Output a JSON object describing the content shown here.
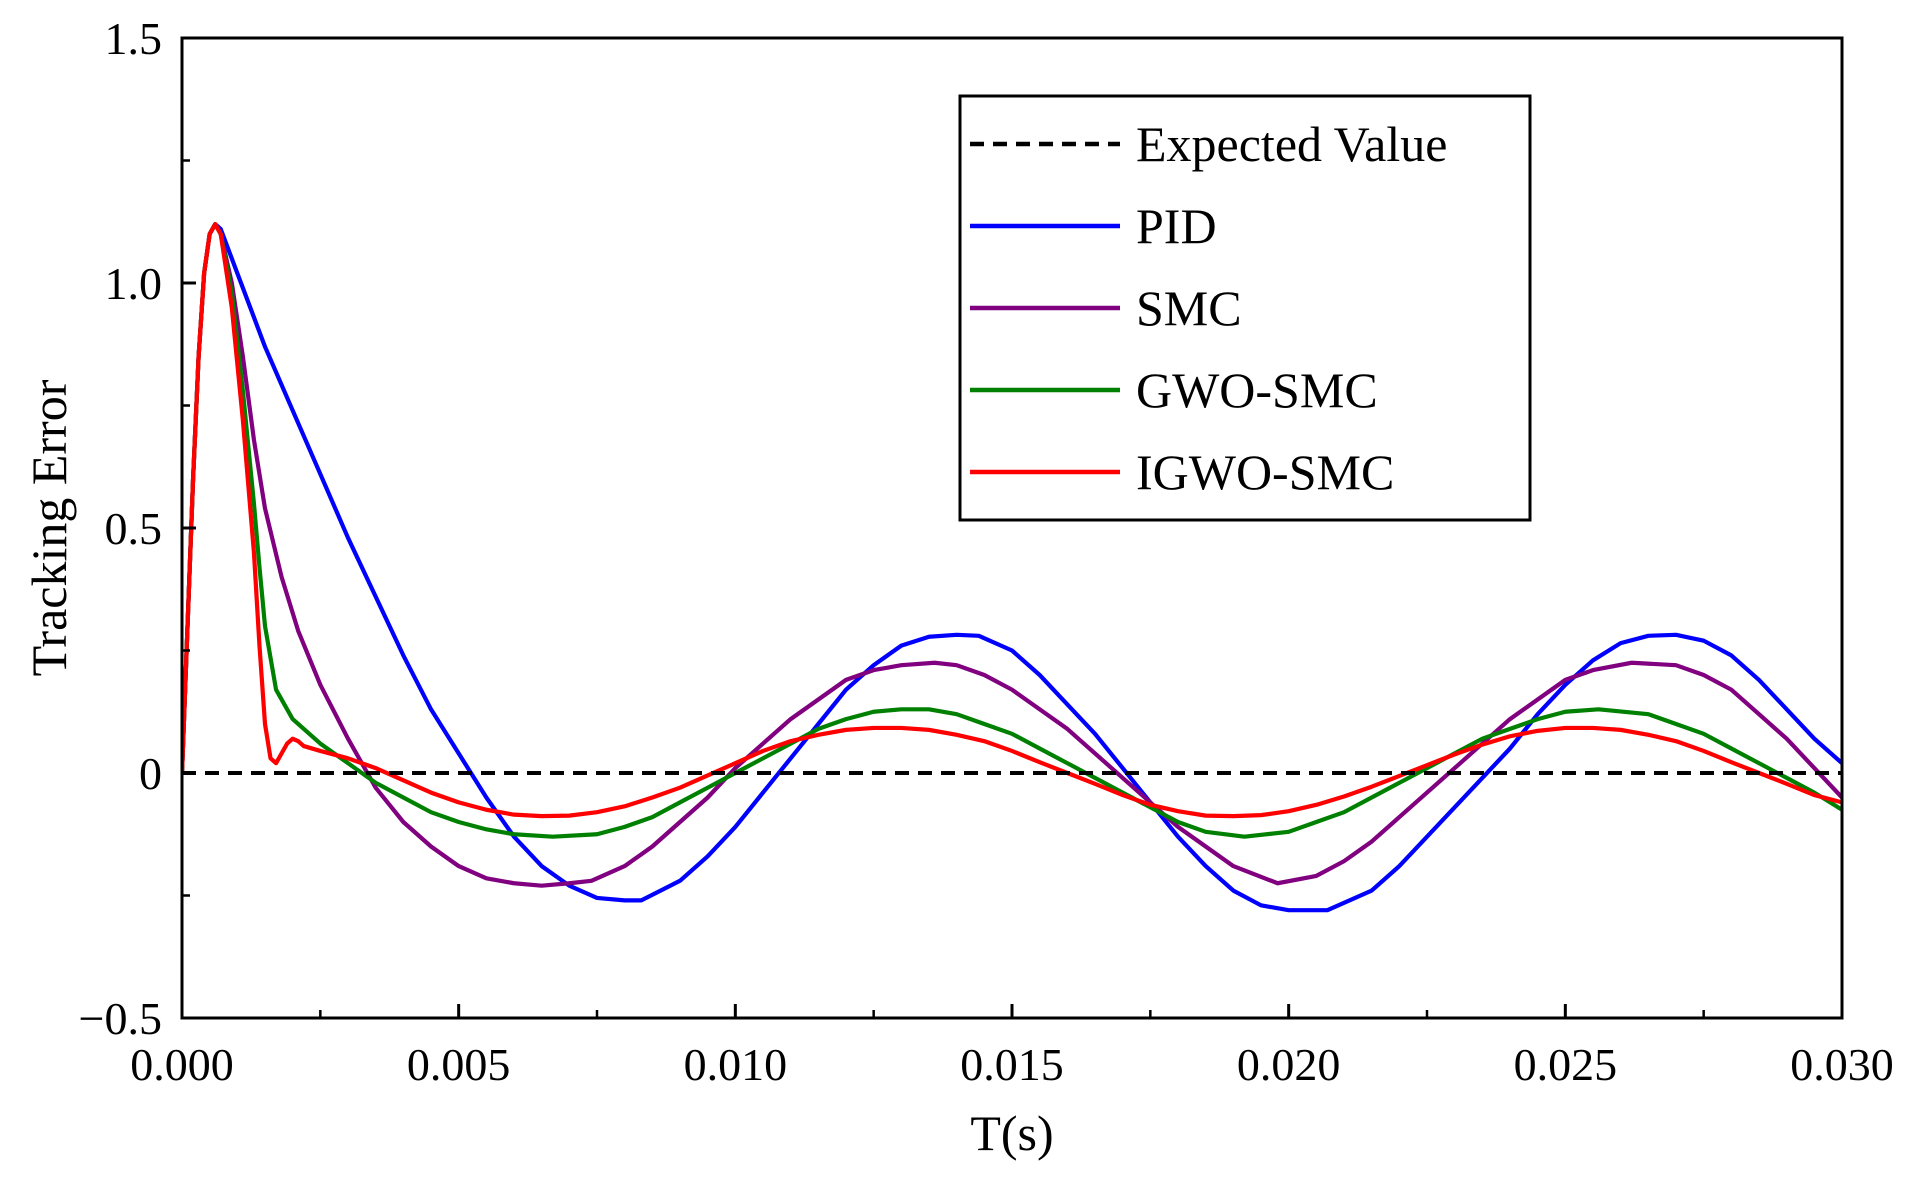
{
  "chart_data": {
    "type": "line",
    "title": "",
    "xlabel": "T(s)",
    "ylabel": "Tracking Error",
    "xlim": [
      0,
      0.03
    ],
    "ylim": [
      -0.5,
      1.5
    ],
    "x_ticks": [
      0,
      0.005,
      0.01,
      0.015,
      0.02,
      0.025,
      0.03
    ],
    "x_tick_labels": [
      "0.000",
      "0.005",
      "0.010",
      "0.015",
      "0.020",
      "0.025",
      "0.030"
    ],
    "x_minor_ticks": [
      0.0025,
      0.0075,
      0.0125,
      0.0175,
      0.0225,
      0.0275
    ],
    "y_ticks": [
      -0.5,
      0,
      0.5,
      1.0,
      1.5
    ],
    "y_tick_labels": [
      "−0.5",
      "0",
      "0.5",
      "1.0",
      "1.5"
    ],
    "y_minor_ticks": [
      -0.25,
      0.25,
      0.75,
      1.25
    ],
    "grid": false,
    "legend_position": "top-right",
    "series": [
      {
        "name": "Expected Value",
        "color": "#000000",
        "dashed": true,
        "x": [
          0,
          0.03
        ],
        "y": [
          0,
          0
        ]
      },
      {
        "name": "PID",
        "color": "#0000ff",
        "dashed": false,
        "x": [
          0,
          0.0001,
          0.0002,
          0.0003,
          0.0004,
          0.0005,
          0.0006,
          0.0007,
          0.001,
          0.0015,
          0.002,
          0.0025,
          0.003,
          0.0035,
          0.004,
          0.0045,
          0.005,
          0.0055,
          0.006,
          0.0065,
          0.007,
          0.0075,
          0.008,
          0.0083,
          0.009,
          0.0095,
          0.01,
          0.0105,
          0.011,
          0.0115,
          0.012,
          0.0125,
          0.013,
          0.0135,
          0.014,
          0.0144,
          0.015,
          0.0155,
          0.016,
          0.0165,
          0.017,
          0.0175,
          0.018,
          0.0185,
          0.019,
          0.0195,
          0.02,
          0.0207,
          0.0215,
          0.022,
          0.0225,
          0.023,
          0.0235,
          0.024,
          0.0245,
          0.025,
          0.0255,
          0.026,
          0.0265,
          0.027,
          0.0275,
          0.028,
          0.0285,
          0.029,
          0.0295,
          0.03
        ],
        "y": [
          0,
          0.3,
          0.6,
          0.85,
          1.02,
          1.1,
          1.12,
          1.11,
          1.02,
          0.87,
          0.74,
          0.61,
          0.48,
          0.36,
          0.24,
          0.13,
          0.04,
          -0.05,
          -0.13,
          -0.19,
          -0.23,
          -0.255,
          -0.26,
          -0.26,
          -0.22,
          -0.17,
          -0.11,
          -0.04,
          0.03,
          0.1,
          0.17,
          0.22,
          0.26,
          0.278,
          0.282,
          0.28,
          0.25,
          0.2,
          0.14,
          0.08,
          0.01,
          -0.06,
          -0.13,
          -0.19,
          -0.24,
          -0.27,
          -0.28,
          -0.28,
          -0.24,
          -0.19,
          -0.13,
          -0.07,
          -0.01,
          0.05,
          0.12,
          0.18,
          0.23,
          0.265,
          0.28,
          0.282,
          0.27,
          0.24,
          0.19,
          0.13,
          0.07,
          0.02
        ]
      },
      {
        "name": "SMC",
        "color": "#800080",
        "dashed": false,
        "x": [
          0,
          0.0001,
          0.0002,
          0.0003,
          0.0004,
          0.0005,
          0.0006,
          0.0007,
          0.0009,
          0.0011,
          0.0013,
          0.0015,
          0.0018,
          0.0021,
          0.0025,
          0.003,
          0.0035,
          0.004,
          0.0045,
          0.005,
          0.0055,
          0.006,
          0.0065,
          0.007,
          0.0074,
          0.008,
          0.0085,
          0.009,
          0.0095,
          0.01,
          0.0105,
          0.011,
          0.0115,
          0.012,
          0.0125,
          0.013,
          0.0136,
          0.014,
          0.0145,
          0.015,
          0.0155,
          0.016,
          0.0165,
          0.017,
          0.0175,
          0.018,
          0.0185,
          0.019,
          0.0198,
          0.0205,
          0.021,
          0.0215,
          0.022,
          0.0225,
          0.023,
          0.0235,
          0.024,
          0.0245,
          0.025,
          0.0255,
          0.0262,
          0.027,
          0.0275,
          0.028,
          0.0285,
          0.029,
          0.0295,
          0.03
        ],
        "y": [
          0,
          0.3,
          0.6,
          0.85,
          1.02,
          1.1,
          1.12,
          1.1,
          1.0,
          0.85,
          0.68,
          0.54,
          0.4,
          0.29,
          0.18,
          0.07,
          -0.03,
          -0.1,
          -0.15,
          -0.19,
          -0.215,
          -0.225,
          -0.23,
          -0.225,
          -0.22,
          -0.19,
          -0.15,
          -0.1,
          -0.05,
          0.01,
          0.06,
          0.11,
          0.15,
          0.19,
          0.21,
          0.22,
          0.225,
          0.22,
          0.2,
          0.17,
          0.13,
          0.09,
          0.04,
          -0.01,
          -0.06,
          -0.11,
          -0.15,
          -0.19,
          -0.225,
          -0.21,
          -0.18,
          -0.14,
          -0.09,
          -0.04,
          0.01,
          0.06,
          0.11,
          0.15,
          0.19,
          0.21,
          0.225,
          0.22,
          0.2,
          0.17,
          0.12,
          0.07,
          0.01,
          -0.05
        ]
      },
      {
        "name": "GWO-SMC",
        "color": "#008000",
        "dashed": false,
        "x": [
          0,
          0.0001,
          0.0002,
          0.0003,
          0.0004,
          0.0005,
          0.0006,
          0.0007,
          0.0009,
          0.0011,
          0.0013,
          0.0014,
          0.0015,
          0.0017,
          0.002,
          0.0025,
          0.003,
          0.0035,
          0.004,
          0.0045,
          0.005,
          0.0055,
          0.006,
          0.0067,
          0.0075,
          0.008,
          0.0085,
          0.009,
          0.0095,
          0.01,
          0.0105,
          0.011,
          0.0115,
          0.012,
          0.0125,
          0.013,
          0.0135,
          0.014,
          0.0145,
          0.015,
          0.0155,
          0.016,
          0.0165,
          0.017,
          0.0175,
          0.018,
          0.0185,
          0.0192,
          0.02,
          0.0205,
          0.021,
          0.0215,
          0.022,
          0.0225,
          0.023,
          0.0235,
          0.024,
          0.0245,
          0.025,
          0.0256,
          0.0265,
          0.027,
          0.0275,
          0.028,
          0.0285,
          0.029,
          0.0295,
          0.03
        ],
        "y": [
          0,
          0.3,
          0.6,
          0.85,
          1.02,
          1.1,
          1.12,
          1.1,
          0.98,
          0.78,
          0.55,
          0.42,
          0.3,
          0.17,
          0.11,
          0.06,
          0.02,
          -0.02,
          -0.05,
          -0.08,
          -0.1,
          -0.115,
          -0.125,
          -0.13,
          -0.125,
          -0.11,
          -0.09,
          -0.06,
          -0.03,
          0.0,
          0.03,
          0.06,
          0.09,
          0.11,
          0.125,
          0.13,
          0.13,
          0.12,
          0.1,
          0.08,
          0.05,
          0.02,
          -0.01,
          -0.04,
          -0.07,
          -0.1,
          -0.12,
          -0.13,
          -0.12,
          -0.1,
          -0.08,
          -0.05,
          -0.02,
          0.01,
          0.04,
          0.07,
          0.09,
          0.11,
          0.125,
          0.13,
          0.12,
          0.1,
          0.08,
          0.05,
          0.02,
          -0.01,
          -0.04,
          -0.075
        ]
      },
      {
        "name": "IGWO-SMC",
        "color": "#ff0000",
        "dashed": false,
        "x": [
          0,
          0.0001,
          0.0002,
          0.0003,
          0.0004,
          0.0005,
          0.0006,
          0.0007,
          0.0009,
          0.0011,
          0.0013,
          0.0014,
          0.0015,
          0.0016,
          0.0017,
          0.0018,
          0.0019,
          0.002,
          0.0021,
          0.0022,
          0.0025,
          0.003,
          0.0035,
          0.004,
          0.0045,
          0.005,
          0.0055,
          0.006,
          0.0065,
          0.007,
          0.0075,
          0.008,
          0.0085,
          0.009,
          0.0095,
          0.01,
          0.0105,
          0.011,
          0.0115,
          0.012,
          0.0125,
          0.013,
          0.0135,
          0.014,
          0.0145,
          0.015,
          0.0155,
          0.016,
          0.0165,
          0.017,
          0.0175,
          0.018,
          0.0185,
          0.019,
          0.0195,
          0.02,
          0.0205,
          0.021,
          0.0215,
          0.022,
          0.0225,
          0.023,
          0.0235,
          0.024,
          0.0245,
          0.025,
          0.0255,
          0.026,
          0.0265,
          0.027,
          0.0275,
          0.028,
          0.0285,
          0.029,
          0.0295,
          0.03
        ],
        "y": [
          0,
          0.3,
          0.6,
          0.85,
          1.02,
          1.1,
          1.12,
          1.1,
          0.95,
          0.72,
          0.45,
          0.26,
          0.1,
          0.03,
          0.02,
          0.04,
          0.06,
          0.07,
          0.065,
          0.055,
          0.045,
          0.03,
          0.01,
          -0.015,
          -0.04,
          -0.06,
          -0.075,
          -0.085,
          -0.088,
          -0.087,
          -0.08,
          -0.068,
          -0.05,
          -0.03,
          -0.005,
          0.02,
          0.045,
          0.065,
          0.078,
          0.088,
          0.092,
          0.092,
          0.088,
          0.078,
          0.065,
          0.045,
          0.022,
          0.0,
          -0.022,
          -0.045,
          -0.065,
          -0.078,
          -0.087,
          -0.088,
          -0.086,
          -0.078,
          -0.065,
          -0.048,
          -0.028,
          -0.006,
          0.016,
          0.038,
          0.058,
          0.075,
          0.086,
          0.092,
          0.092,
          0.088,
          0.078,
          0.065,
          0.045,
          0.022,
          0.0,
          -0.022,
          -0.045,
          -0.06
        ]
      }
    ]
  }
}
